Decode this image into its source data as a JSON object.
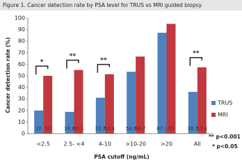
{
  "chart_data": {
    "type": "bar",
    "title": "Figure 1. Cancer detection rate by PSA level for TRUS vs MRI guided biopsy",
    "y_label": "Cancer detection rate (%)",
    "x_label": "PSA cutoff (ng/mL)",
    "categories": [
      "<2.5",
      "2.5- <4",
      "4-10",
      ">10-20",
      ">20",
      "All"
    ],
    "series": [
      {
        "name": "TRUS",
        "color": "#4f81bd",
        "values": [
          20,
          18.8,
          31.1,
          53.5,
          87.3,
          36.1
        ]
      },
      {
        "name": "MRI",
        "color": "#c0393f",
        "values": [
          50,
          55.1,
          51.4,
          66.7,
          95,
          57.4
        ]
      }
    ],
    "significance": [
      "*",
      "**",
      "**",
      null,
      null,
      "**"
    ],
    "notes": [
      "** p<0.001",
      "* p<0.05"
    ],
    "ylim": [
      0,
      100
    ],
    "yticks": [
      0,
      10,
      20,
      30,
      40,
      50,
      60,
      70,
      80,
      90,
      100
    ],
    "grid": false,
    "legend": "right"
  }
}
